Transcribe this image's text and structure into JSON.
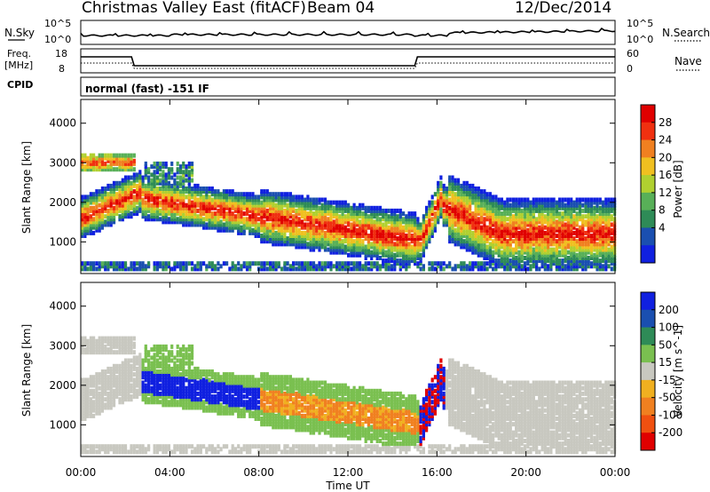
{
  "header": {
    "station": "Christmas Valley East (fitACF)",
    "beam": "Beam 04",
    "date": "12/Dec/2014"
  },
  "top_panel": {
    "left_label": "N.Sky",
    "left_ticks": [
      "10^5",
      "10^0"
    ],
    "right_label": "N.Search",
    "right_ticks": [
      "10^5",
      "10^0"
    ]
  },
  "freq_panel": {
    "left_label_1": "Freq.",
    "left_label_2": "[MHz]",
    "left_ticks": [
      "18",
      "8"
    ],
    "right_label": "Nave",
    "right_ticks": [
      "60",
      "0"
    ]
  },
  "cpid_panel": {
    "label": "CPID",
    "mode": "normal (fast) -151 IF"
  },
  "colors": {
    "power": [
      "#1020e0",
      "#1a4fb0",
      "#2e8b57",
      "#58b058",
      "#b0d030",
      "#f0c020",
      "#f08020",
      "#f03010",
      "#e00000"
    ],
    "velocity": [
      "#1020e0",
      "#1a4fb0",
      "#2e8b57",
      "#7ac050",
      "#c8c8c0",
      "#f0b020",
      "#f08020",
      "#f05010",
      "#e00000"
    ]
  },
  "chart_data": [
    {
      "type": "heatmap",
      "title": "Power",
      "ylabel": "Slant Range [km]",
      "yticks": [
        "1000",
        "2000",
        "3000",
        "4000"
      ],
      "ylim": [
        200,
        4600
      ],
      "colorbar_label": "Power [dB]",
      "colorbar_ticks": [
        "28",
        "24",
        "20",
        "16",
        "12",
        "8",
        "4"
      ]
    },
    {
      "type": "heatmap",
      "title": "Velocity",
      "ylabel": "Slant Range [km]",
      "yticks": [
        "1000",
        "2000",
        "3000",
        "4000"
      ],
      "ylim": [
        200,
        4600
      ],
      "xlabel": "Time UT",
      "xticks": [
        "00:00",
        "04:00",
        "08:00",
        "12:00",
        "16:00",
        "20:00",
        "00:00"
      ],
      "xlim_hours": [
        0,
        24
      ],
      "colorbar_label": "Velocity [m s^-1]",
      "colorbar_ticks": [
        "200",
        "100",
        "50",
        "15",
        "-15",
        "-50",
        "-100",
        "-200"
      ]
    }
  ]
}
